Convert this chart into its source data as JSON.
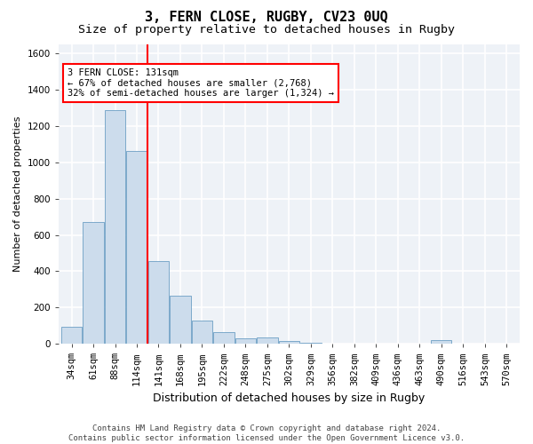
{
  "title": "3, FERN CLOSE, RUGBY, CV23 0UQ",
  "subtitle": "Size of property relative to detached houses in Rugby",
  "xlabel": "Distribution of detached houses by size in Rugby",
  "ylabel": "Number of detached properties",
  "categories": [
    "34sqm",
    "61sqm",
    "88sqm",
    "114sqm",
    "141sqm",
    "168sqm",
    "195sqm",
    "222sqm",
    "248sqm",
    "275sqm",
    "302sqm",
    "329sqm",
    "356sqm",
    "382sqm",
    "409sqm",
    "436sqm",
    "463sqm",
    "490sqm",
    "516sqm",
    "543sqm",
    "570sqm"
  ],
  "values": [
    95,
    670,
    1290,
    1065,
    455,
    265,
    130,
    65,
    30,
    35,
    15,
    5,
    0,
    0,
    0,
    0,
    0,
    20,
    0,
    0,
    0
  ],
  "bar_color": "#ccdcec",
  "bar_edge_color": "#5590bb",
  "annotation_line1": "3 FERN CLOSE: 131sqm",
  "annotation_line2": "← 67% of detached houses are smaller (2,768)",
  "annotation_line3": "32% of semi-detached houses are larger (1,324) →",
  "annotation_box_facecolor": "white",
  "annotation_box_edgecolor": "red",
  "property_line_color": "red",
  "property_line_xindex": 3.5,
  "ylim": [
    0,
    1650
  ],
  "yticks": [
    0,
    200,
    400,
    600,
    800,
    1000,
    1200,
    1400,
    1600
  ],
  "footer_line1": "Contains HM Land Registry data © Crown copyright and database right 2024.",
  "footer_line2": "Contains public sector information licensed under the Open Government Licence v3.0.",
  "plot_bg_color": "#eef2f7",
  "grid_color": "white",
  "title_fontsize": 11,
  "subtitle_fontsize": 9.5,
  "xlabel_fontsize": 9,
  "ylabel_fontsize": 8,
  "tick_fontsize": 7.5,
  "annot_fontsize": 7.5,
  "footer_fontsize": 6.5
}
